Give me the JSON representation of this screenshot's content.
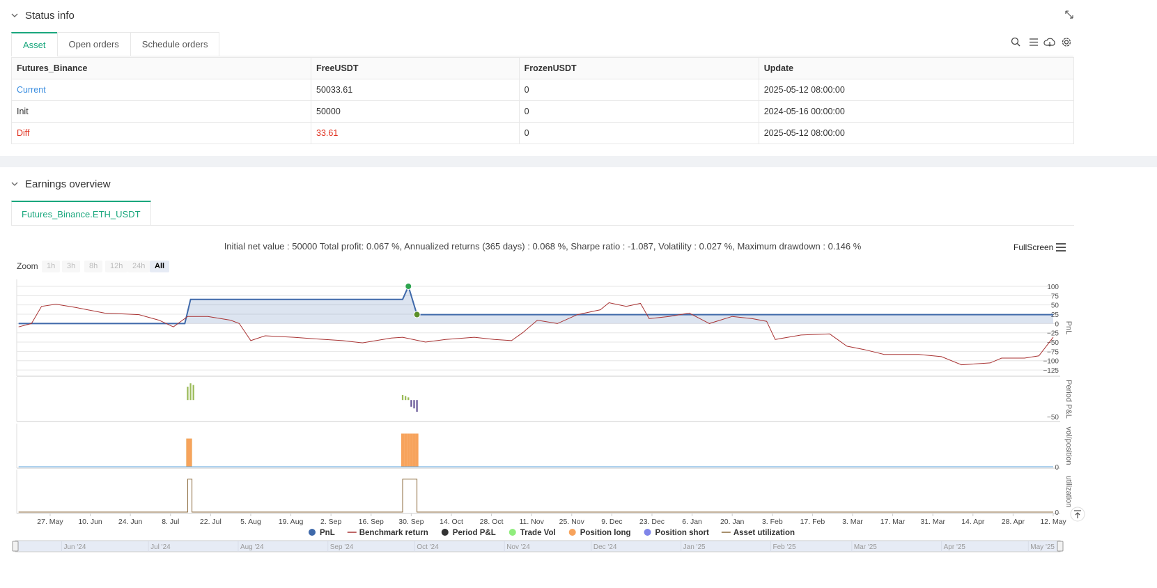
{
  "status": {
    "title": "Status info",
    "tabs": [
      "Asset",
      "Open orders",
      "Schedule orders"
    ],
    "table": {
      "header": [
        "Futures_Binance",
        "FreeUSDT",
        "FrozenUSDT",
        "Update"
      ],
      "rows": [
        [
          "Current",
          "50033.61",
          "0",
          "2025-05-12 08:00:00"
        ],
        [
          "Init",
          "50000",
          "0",
          "2024-05-16 00:00:00"
        ],
        [
          "Diff",
          "33.61",
          "0",
          "2025-05-12 08:00:00"
        ]
      ]
    }
  },
  "earnings": {
    "title": "Earnings overview",
    "tab": "Futures_Binance.ETH_USDT",
    "summary": "Initial net value : 50000 Total profit: 0.067 %, Annualized returns (365 days) : 0.068 %, Sharpe ratio : -1.087, Volatility : 0.027 %, Maximum drawdown : 0.146 %",
    "fullscreen": "FullScreen",
    "zoom": {
      "label": "Zoom",
      "buttons": [
        "1h",
        "3h",
        "8h",
        "12h",
        "24h",
        "All"
      ],
      "selected": 5
    },
    "x_axis": {
      "xlim": [
        0,
        361
      ],
      "xticks": [
        {
          "value": 11,
          "label": "27. May"
        },
        {
          "value": 25,
          "label": "10. Jun"
        },
        {
          "value": 39,
          "label": "24. Jun"
        },
        {
          "value": 53,
          "label": "8. Jul"
        },
        {
          "value": 67,
          "label": "22. Jul"
        },
        {
          "value": 81,
          "label": "5. Aug"
        },
        {
          "value": 95,
          "label": "19. Aug"
        },
        {
          "value": 109,
          "label": "2. Sep"
        },
        {
          "value": 123,
          "label": "16. Sep"
        },
        {
          "value": 137,
          "label": "30. Sep"
        },
        {
          "value": 151,
          "label": "14. Oct"
        },
        {
          "value": 165,
          "label": "28. Oct"
        },
        {
          "value": 179,
          "label": "11. Nov"
        },
        {
          "value": 193,
          "label": "25. Nov"
        },
        {
          "value": 207,
          "label": "9. Dec"
        },
        {
          "value": 221,
          "label": "23. Dec"
        },
        {
          "value": 235,
          "label": "6. Jan"
        },
        {
          "value": 249,
          "label": "20. Jan"
        },
        {
          "value": 263,
          "label": "3. Feb"
        },
        {
          "value": 277,
          "label": "17. Feb"
        },
        {
          "value": 291,
          "label": "3. Mar"
        },
        {
          "value": 305,
          "label": "17. Mar"
        },
        {
          "value": 319,
          "label": "31. Mar"
        },
        {
          "value": 333,
          "label": "14. Apr"
        },
        {
          "value": 347,
          "label": "28. Apr"
        },
        {
          "value": 361,
          "label": "12. May"
        }
      ]
    },
    "navigator": {
      "xticks": [
        {
          "value": 16,
          "label": "Jun '24"
        },
        {
          "value": 46,
          "label": "Jul '24"
        },
        {
          "value": 77,
          "label": "Aug '24"
        },
        {
          "value": 108,
          "label": "Sep '24"
        },
        {
          "value": 138,
          "label": "Oct '24"
        },
        {
          "value": 169,
          "label": "Nov '24"
        },
        {
          "value": 199,
          "label": "Dec '24"
        },
        {
          "value": 230,
          "label": "Jan '25"
        },
        {
          "value": 261,
          "label": "Feb '25"
        },
        {
          "value": 289,
          "label": "Mar '25"
        },
        {
          "value": 320,
          "label": "Apr '25"
        },
        {
          "value": 350,
          "label": "May '25"
        }
      ]
    },
    "chart_data": [
      {
        "type": "line",
        "y_label": "PnL",
        "ylim": [
          -138,
          115
        ],
        "grid": true,
        "yticks": [
          100,
          75,
          50,
          25,
          0,
          {
            "value": -25,
            "label": "−25"
          },
          {
            "value": -50,
            "label": "−50"
          },
          {
            "value": -75,
            "label": "−75"
          },
          {
            "value": -100,
            "label": "−100"
          },
          {
            "value": -125,
            "label": "−125"
          }
        ],
        "series": [
          {
            "name": "PnL",
            "type": "area",
            "color": "#3f69aa",
            "legend_marker": "circle",
            "x": [
              0,
              58,
              60,
              134,
              136,
              139,
              361
            ],
            "values": [
              0,
              0,
              65,
              65,
              100,
              24,
              24
            ]
          },
          {
            "name": "Benchmark return",
            "type": "line",
            "color": "#a83232",
            "legend_marker": "line",
            "x": [
              0,
              4.5,
              8,
              13,
              20,
              30,
              42,
              49,
              54,
              59,
              66,
              74,
              77,
              81,
              86,
              96,
              103,
              113,
              120,
              130,
              134,
              142,
              149,
              159,
              166,
              172,
              176,
              181,
              188,
              195,
              203,
              206,
              212,
              217,
              220,
              227,
              234,
              241,
              249,
              256,
              261,
              264,
              273,
              283,
              289,
              295,
              302,
              314,
              322,
              329,
              339,
              343,
              351,
              356,
              361
            ],
            "values": [
              -9,
              0,
              46,
              52,
              43,
              28,
              24,
              9,
              -9,
              19,
              19,
              9,
              0,
              -46,
              -33,
              -37,
              -41,
              -46,
              -52,
              -39,
              -37,
              -50,
              -43,
              -37,
              -43,
              -46,
              -24,
              9,
              0,
              24,
              37,
              56,
              46,
              54,
              13,
              19,
              28,
              0,
              19,
              13,
              6,
              -43,
              -31,
              -28,
              -61,
              -70,
              -83,
              -83,
              -89,
              -111,
              -106,
              -93,
              -93,
              -87,
              -37
            ]
          }
        ],
        "markers": [
          {
            "x": 136,
            "value": 100,
            "color": "#2ea44f"
          },
          {
            "x": 139,
            "value": 24,
            "color": "#5a8f29"
          }
        ]
      },
      {
        "type": "bar",
        "y_label": "Period P&L",
        "ylim": [
          -60,
          65
        ],
        "grid": false,
        "yticks": [
          {
            "value": -50,
            "label": "−50"
          }
        ],
        "series": [
          {
            "name": "Period P&L",
            "type": "bar",
            "color": "#333333",
            "legend_marker": "circle",
            "positive_color": "#9bbb59",
            "negative_color": "#6a5a9a",
            "x": [
              59,
              60,
              61,
              134,
              135,
              136,
              137,
              138,
              139
            ],
            "values": [
              40,
              50,
              45,
              15,
              12,
              8,
              -20,
              -25,
              -35
            ]
          }
        ]
      },
      {
        "type": "bar",
        "y_label": "vol/position",
        "ylim": [
          0,
          1.26
        ],
        "grid": false,
        "yticks": [
          0
        ],
        "series": [
          {
            "name": "Trade Vol",
            "type": "bar",
            "color": "#90ed7d",
            "legend_marker": "circle",
            "x": [
              59,
              60
            ],
            "values": [
              0.85,
              0.85
            ]
          },
          {
            "name": "Position long",
            "type": "bar",
            "color": "#f7a35c",
            "legend_marker": "circle",
            "x": [
              59,
              60,
              134,
              135,
              136,
              137,
              138,
              139
            ],
            "values": [
              0.85,
              0.85,
              1,
              1,
              1,
              1,
              1,
              1
            ]
          },
          {
            "name": "Position short",
            "type": "line",
            "color": "#5ba3dd",
            "legend_marker": "circle",
            "legend_color": "#8085e9",
            "x": [
              0,
              361
            ],
            "values": [
              0,
              0
            ]
          }
        ]
      },
      {
        "type": "line",
        "y_label": "utilization",
        "ylim": [
          0,
          1.25
        ],
        "grid": false,
        "yticks": [
          0
        ],
        "series": [
          {
            "name": "Asset utilization",
            "type": "line",
            "color": "#8b6a3c",
            "legend_marker": "line",
            "x": [
              0,
              59,
              59,
              60.5,
              60.5,
              134,
              134,
              139,
              139,
              361
            ],
            "values": [
              0,
              0,
              1,
              1,
              0,
              0,
              1,
              1,
              0,
              0
            ]
          }
        ]
      }
    ]
  }
}
